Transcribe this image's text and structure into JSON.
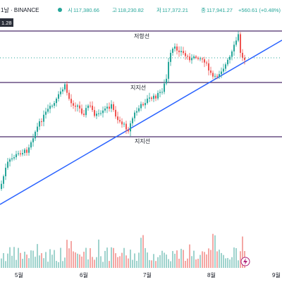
{
  "header": {
    "symbol_text": "1날 · BINANCE",
    "ohlc": [
      {
        "key": "시",
        "value": "117,380.66"
      },
      {
        "key": "고",
        "value": "118,230.82"
      },
      {
        "key": "저",
        "value": "117,372.21"
      },
      {
        "key": "종",
        "value": "117,941.27"
      }
    ],
    "change_text": "+560.61 (+0.48%)",
    "left_price_badge": "1.28"
  },
  "colors": {
    "up": "#26a69a",
    "down": "#ef5350",
    "vol_up": "#9fd3cd",
    "vol_down": "#f4a7a4",
    "level_line": "#4a2c6b",
    "trendline": "#2962ff",
    "dotted": "#26a69a",
    "grid": "#eef0f3"
  },
  "chart_data": {
    "type": "candlestick",
    "x_ticks": [
      "5월",
      "6월",
      "7월",
      "8월",
      "9월"
    ],
    "horizontal_levels": [
      {
        "label": "저항선",
        "price": 122800
      },
      {
        "label": "지지선",
        "price": 110500
      },
      {
        "label": "지지선",
        "price": 101400
      }
    ],
    "trendline": {
      "from": {
        "date": "2025-04-01",
        "price": 91000
      },
      "to": {
        "date": "2025-09-10",
        "price": 124000
      }
    },
    "price_range": [
      88000,
      125000
    ],
    "volume_visible": true,
    "grid": false,
    "legend": "none"
  }
}
